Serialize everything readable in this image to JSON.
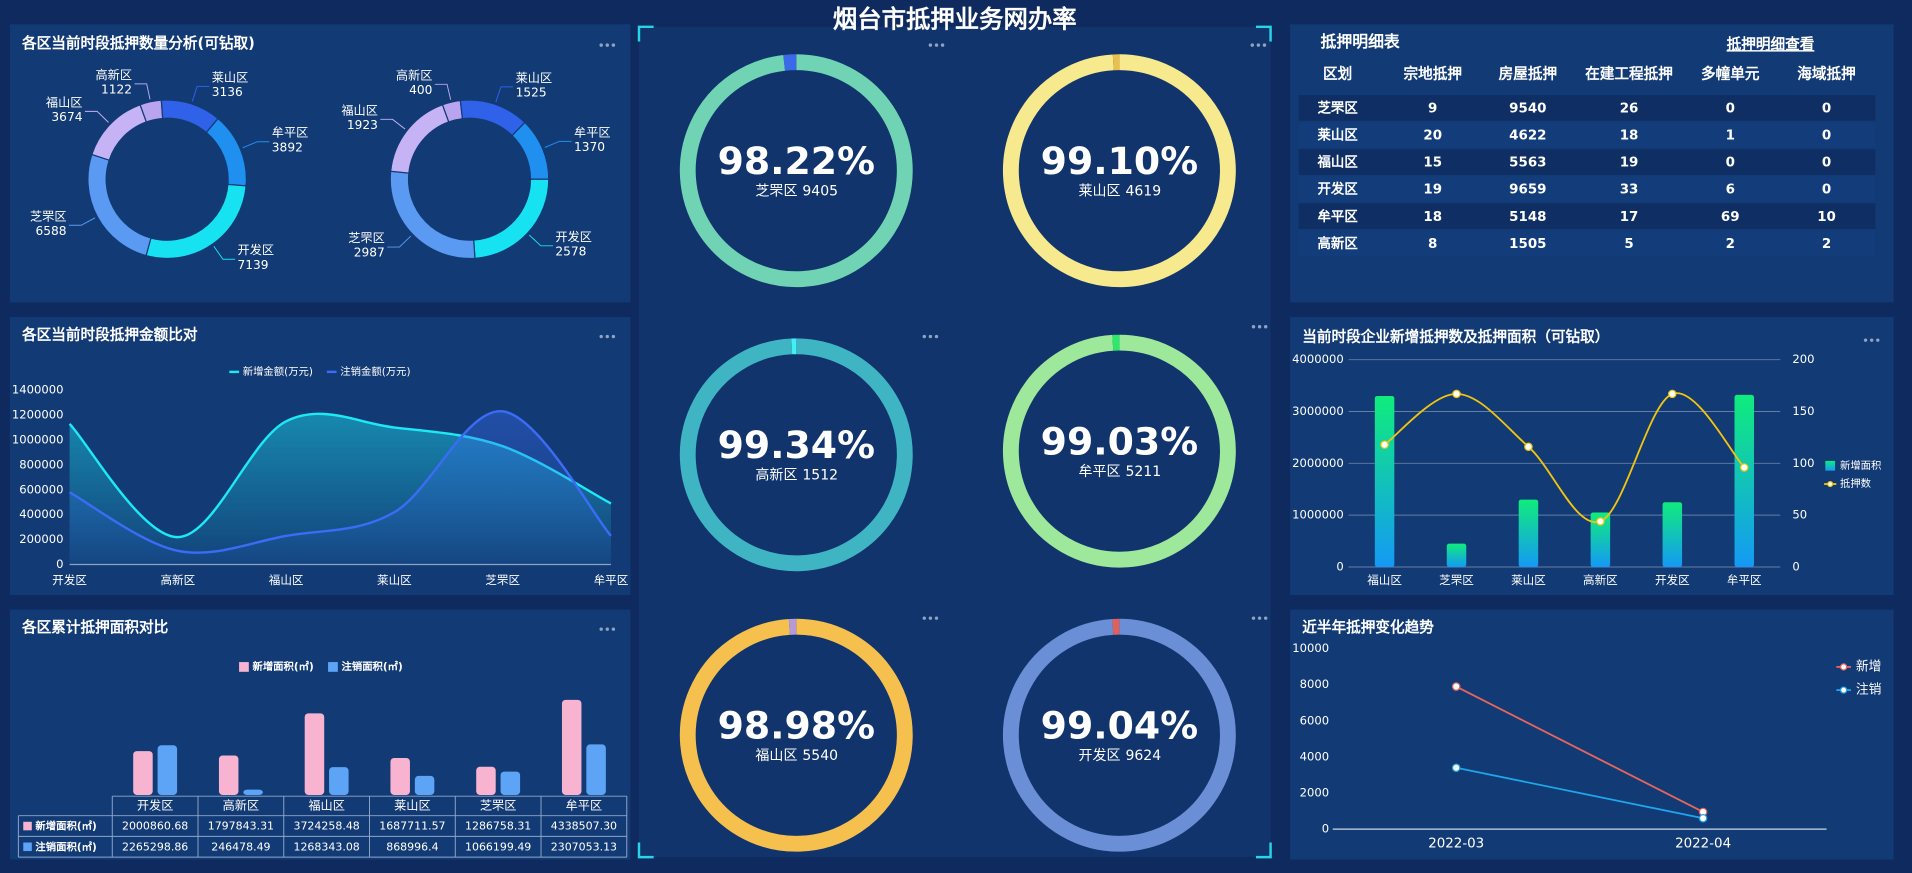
{
  "title": "烟台市抵押业务网办率",
  "chart_data": [
    {
      "type": "donut",
      "title": "各区当前时段抵押数量分析(可钻取)",
      "categories": [
        "高新区",
        "莱山区",
        "牟平区",
        "开发区",
        "芝罘区",
        "福山区"
      ],
      "colors": [
        "#b9a5ef",
        "#2f62e8",
        "#1f8ff0",
        "#16e2f2",
        "#5b9af2",
        "#c5b3f5"
      ],
      "series": [
        {
          "values": [
            1122,
            3136,
            3892,
            7139,
            6588,
            3674
          ]
        },
        {
          "values": [
            400,
            1525,
            1370,
            2578,
            2987,
            1923
          ]
        }
      ]
    },
    {
      "type": "area",
      "title": "各区当前时段抵押金额比对",
      "categories": [
        "开发区",
        "高新区",
        "福山区",
        "莱山区",
        "芝罘区",
        "牟平区"
      ],
      "series": [
        {
          "name": "新增金额(万元)",
          "color": "#1de9f6",
          "values": [
            1130000,
            220000,
            1150000,
            1100000,
            950000,
            490000
          ]
        },
        {
          "name": "注销金额(万元)",
          "color": "#3a6cf4",
          "values": [
            580000,
            110000,
            230000,
            420000,
            1230000,
            230000
          ]
        }
      ],
      "ylim": [
        0,
        1400000
      ],
      "yticks": [
        0,
        200000,
        400000,
        600000,
        800000,
        1000000,
        1200000,
        1400000
      ]
    },
    {
      "type": "bar_table",
      "title": "各区累计抵押面积对比",
      "categories": [
        "开发区",
        "高新区",
        "福山区",
        "莱山区",
        "芝罘区",
        "牟平区"
      ],
      "series": [
        {
          "name": "新增面积(㎡)",
          "color": "#f7b3cf",
          "values": [
            2000860.68,
            1797843.31,
            3724258.48,
            1687711.57,
            1286758.31,
            4338507.3
          ],
          "value_labels": [
            "2000860.68",
            "1797843.31",
            "3724258.48",
            "1687711.57",
            "1286758.31",
            "4338507.30"
          ]
        },
        {
          "name": "注销面积(㎡)",
          "color": "#5ea4f6",
          "values": [
            2265298.86,
            246478.49,
            1268343.08,
            868996.4,
            1066199.49,
            2307053.13
          ],
          "value_labels": [
            "2265298.86",
            "246478.49",
            "1268343.08",
            "868996.4",
            "1066199.49",
            "2307053.13"
          ]
        }
      ]
    },
    {
      "type": "ring",
      "items": [
        {
          "name": "芝罘区",
          "count": 9405,
          "value": 98.22,
          "value_label": "98.22%",
          "color": "#6fd3b4",
          "rest_color": "#3a6ae8"
        },
        {
          "name": "莱山区",
          "count": 4619,
          "value": 99.1,
          "value_label": "99.10%",
          "color": "#f7e98e",
          "rest_color": "#e8c04a"
        },
        {
          "name": "高新区",
          "count": 1512,
          "value": 99.34,
          "value_label": "99.34%",
          "color": "#3fb5c3",
          "rest_color": "#3ff0f5"
        },
        {
          "name": "牟平区",
          "count": 5211,
          "value": 99.03,
          "value_label": "99.03%",
          "color": "#9ee89b",
          "rest_color": "#2ee86a"
        },
        {
          "name": "福山区",
          "count": 5540,
          "value": 98.98,
          "value_label": "98.98%",
          "color": "#f6c04e",
          "rest_color": "#b69ad8"
        },
        {
          "name": "开发区",
          "count": 9624,
          "value": 99.04,
          "value_label": "99.04%",
          "color": "#6b8fd6",
          "rest_color": "#e06060"
        }
      ]
    },
    {
      "type": "combo",
      "title": "当前时段企业新增抵押数及抵押面积（可钻取）",
      "categories": [
        "福山区",
        "芝罘区",
        "莱山区",
        "高新区",
        "开发区",
        "牟平区"
      ],
      "series": [
        {
          "name": "新增面积",
          "type": "bar",
          "color": "#10ec7c",
          "gradient": [
            "#10ec7c",
            "#1499f5"
          ],
          "values": [
            3300000,
            450000,
            1300000,
            1050000,
            1250000,
            3320000
          ]
        },
        {
          "name": "抵押数",
          "type": "line",
          "axis": "y2",
          "color": "#f2c40f",
          "values": [
            118,
            167,
            116,
            44,
            167,
            96
          ]
        }
      ],
      "ylim": [
        0,
        4000000
      ],
      "yticks": [
        0,
        1000000,
        2000000,
        3000000,
        4000000
      ],
      "y2lim": [
        0,
        200
      ],
      "y2ticks": [
        0,
        50,
        100,
        150,
        200
      ],
      "grid": true
    },
    {
      "type": "line",
      "title": "近半年抵押变化趋势",
      "x": [
        "2022-03",
        "2022-04"
      ],
      "series": [
        {
          "name": "新增",
          "color": "#e8665c",
          "values": [
            7900,
            950
          ]
        },
        {
          "name": "注销",
          "color": "#1fa5ea",
          "values": [
            3400,
            600
          ]
        }
      ],
      "ylim": [
        0,
        10000
      ],
      "yticks": [
        0,
        2000,
        4000,
        6000,
        8000,
        10000
      ]
    }
  ],
  "table": {
    "title": "抵押明细表",
    "link": "抵押明细查看",
    "columns": [
      "区划",
      "宗地抵押",
      "房屋抵押",
      "在建工程抵押",
      "多幢单元",
      "海域抵押"
    ],
    "rows": [
      {
        "color": "#25e0f0",
        "cells": [
          "芝罘区",
          9,
          9540,
          26,
          0,
          0
        ]
      },
      {
        "color": "#25e0f0",
        "cells": [
          "莱山区",
          20,
          4622,
          18,
          1,
          0
        ]
      },
      {
        "color": "#f7d02c",
        "cells": [
          "福山区",
          15,
          5563,
          19,
          0,
          0
        ]
      },
      {
        "color": "#f7d02c",
        "cells": [
          "开发区",
          19,
          9659,
          33,
          6,
          0
        ]
      },
      {
        "color": "#f07b7b",
        "cells": [
          "牟平区",
          18,
          5148,
          17,
          69,
          10
        ]
      },
      {
        "color": "#f07b7b",
        "cells": [
          "高新区",
          8,
          1505,
          5,
          2,
          2
        ]
      }
    ]
  }
}
